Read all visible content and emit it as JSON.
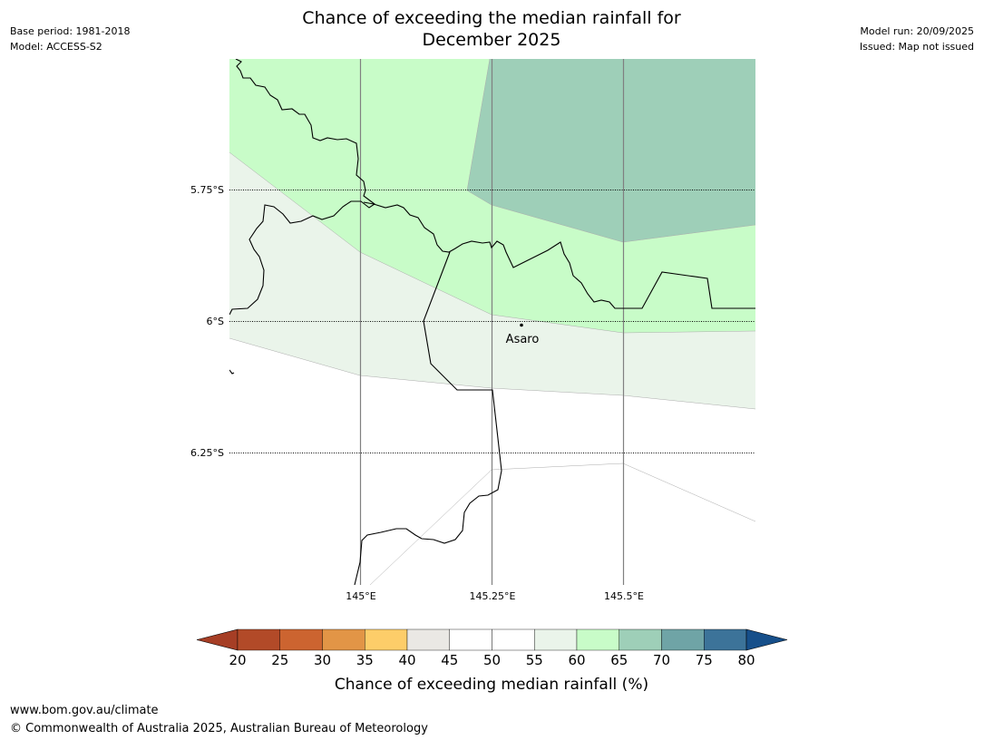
{
  "header": {
    "base_period": "Base period: 1981-2018",
    "model": "Model: ACCESS-S2",
    "title_line1": "Chance of exceeding the median rainfall for",
    "title_line2": "December 2025",
    "model_run": "Model run: 20/09/2025",
    "issued": "Issued: Map not issued"
  },
  "map": {
    "lat_labels": [
      "5.75°S",
      "6°S",
      "6.25°S"
    ],
    "lon_labels": [
      "145°E",
      "145.25°E",
      "145.5°E"
    ],
    "place": {
      "name": "Asaro"
    },
    "zone_colors": {
      "65_70": "#9ecfb8",
      "60_65": "#c8fcc8",
      "55_60": "#eaf4ea",
      "50_55": "#ffffff"
    },
    "border_color": "#000000",
    "grid_color": "#808080"
  },
  "colorbar": {
    "ticks": [
      "20",
      "25",
      "30",
      "35",
      "40",
      "45",
      "50",
      "55",
      "60",
      "65",
      "70",
      "75",
      "80"
    ],
    "colors": [
      "#a63e25",
      "#b24a28",
      "#cc6430",
      "#e29546",
      "#fdcd69",
      "#eae8e4",
      "#ffffff",
      "#ffffff",
      "#eaf4ea",
      "#c8fcc8",
      "#9ecfb8",
      "#6fa4a6",
      "#3c7399",
      "#164f8a"
    ],
    "label": "Chance of exceeding median rainfall (%)"
  },
  "footer": {
    "url": "www.bom.gov.au/climate",
    "copyright": "© Commonwealth of Australia 2025, Australian Bureau of Meteorology"
  }
}
